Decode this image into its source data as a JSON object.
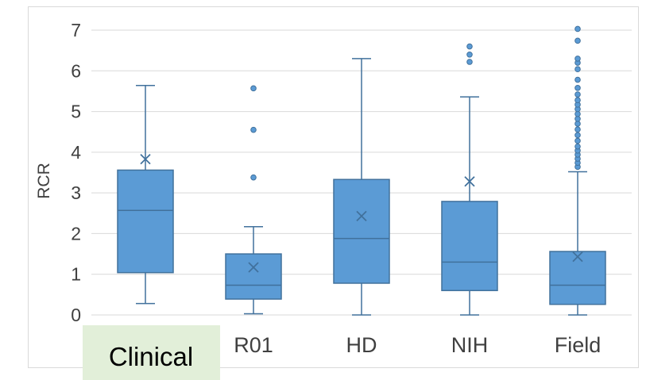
{
  "chart_data": {
    "type": "box",
    "ylabel": "RCR",
    "ylim": [
      0,
      7
    ],
    "yticks": [
      "0",
      "1",
      "2",
      "3",
      "4",
      "5",
      "6",
      "7"
    ],
    "grid": true,
    "box_color": "#5b9bd5",
    "edge_color": "#41719c",
    "highlight_color": "#e2efd9",
    "categories": [
      "Clinical",
      "R01",
      "HD",
      "NIH",
      "Field"
    ],
    "boxes": [
      {
        "name": "Clinical",
        "whisker_low": 0.28,
        "q1": 1.04,
        "median": 2.57,
        "q3": 3.56,
        "whisker_high": 5.64,
        "mean": 3.83,
        "outliers": []
      },
      {
        "name": "R01",
        "whisker_low": 0.03,
        "q1": 0.39,
        "median": 0.73,
        "q3": 1.5,
        "whisker_high": 2.17,
        "mean": 1.17,
        "outliers": [
          3.38,
          4.55,
          5.57
        ]
      },
      {
        "name": "HD",
        "whisker_low": 0.0,
        "q1": 0.78,
        "median": 1.88,
        "q3": 3.33,
        "whisker_high": 6.3,
        "mean": 2.43,
        "outliers": []
      },
      {
        "name": "NIH",
        "whisker_low": 0.0,
        "q1": 0.6,
        "median": 1.3,
        "q3": 2.79,
        "whisker_high": 5.36,
        "mean": 3.28,
        "outliers": [
          6.22,
          6.4,
          6.6
        ]
      },
      {
        "name": "Field",
        "whisker_low": 0.0,
        "q1": 0.26,
        "median": 0.73,
        "q3": 1.56,
        "whisker_high": 3.52,
        "mean": 1.43,
        "outliers": [
          3.64,
          3.74,
          3.84,
          3.94,
          4.04,
          4.14,
          4.28,
          4.42,
          4.56,
          4.7,
          4.82,
          4.94,
          5.06,
          5.17,
          5.28,
          5.42,
          5.58,
          5.78,
          6.04,
          6.2,
          6.3,
          6.74,
          7.03
        ]
      }
    ]
  }
}
